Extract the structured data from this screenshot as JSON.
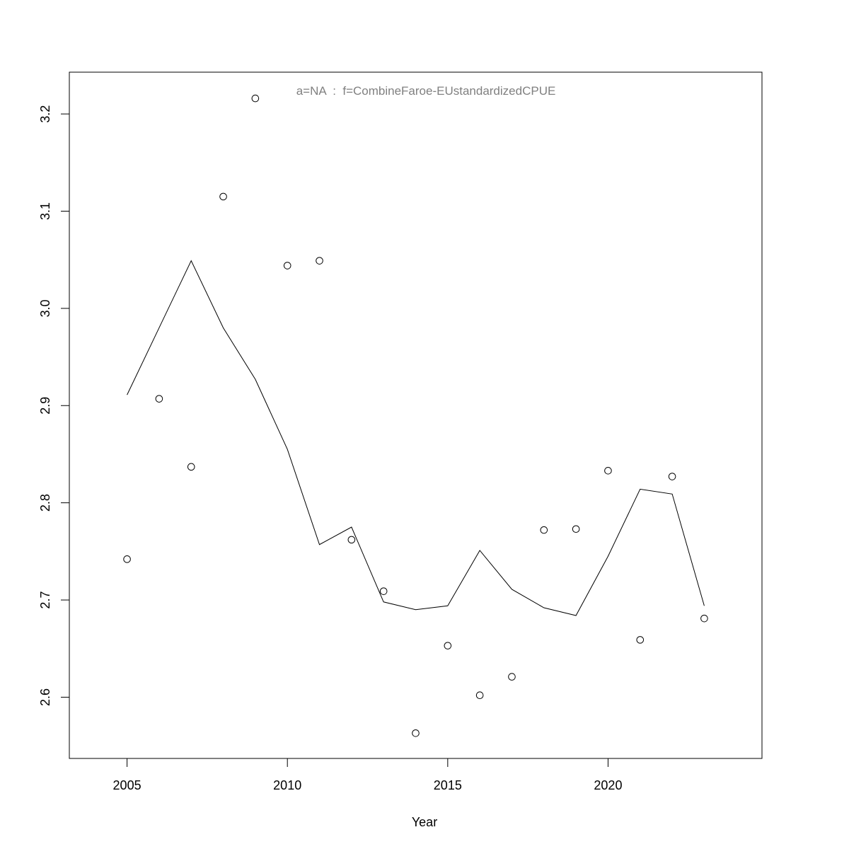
{
  "chart_data": {
    "type": "scatter+line",
    "title": "a=NA  :  f=CombineFaroe-EUstandardizedCPUE",
    "title_color": "#808080",
    "xlabel": "Year",
    "ylabel": "",
    "xlim": [
      2003.2,
      2024.8
    ],
    "ylim": [
      2.537,
      3.243
    ],
    "x_ticks": [
      2005,
      2010,
      2015,
      2020
    ],
    "y_ticks": [
      2.6,
      2.7,
      2.8,
      2.9,
      3.0,
      3.1,
      3.2
    ],
    "y_tick_labels": [
      "2.6",
      "2.7",
      "2.8",
      "2.9",
      "3.0",
      "3.1",
      "3.2"
    ],
    "grid": false,
    "x": [
      2005,
      2006,
      2007,
      2008,
      2009,
      2010,
      2011,
      2012,
      2013,
      2014,
      2015,
      2016,
      2017,
      2018,
      2019,
      2020,
      2021,
      2022,
      2023
    ],
    "series": [
      {
        "kind": "points",
        "marker": "open-circle",
        "values": [
          2.742,
          2.907,
          2.837,
          3.115,
          3.216,
          3.044,
          3.049,
          2.762,
          2.709,
          2.563,
          2.653,
          2.602,
          2.621,
          2.772,
          2.773,
          2.833,
          2.659,
          2.827,
          2.681
        ]
      },
      {
        "kind": "line",
        "values": [
          2.911,
          2.98,
          3.049,
          2.98,
          2.927,
          2.855,
          2.757,
          2.775,
          2.698,
          2.69,
          2.694,
          2.751,
          2.711,
          2.692,
          2.684,
          2.745,
          2.814,
          2.809,
          2.694
        ]
      }
    ]
  }
}
